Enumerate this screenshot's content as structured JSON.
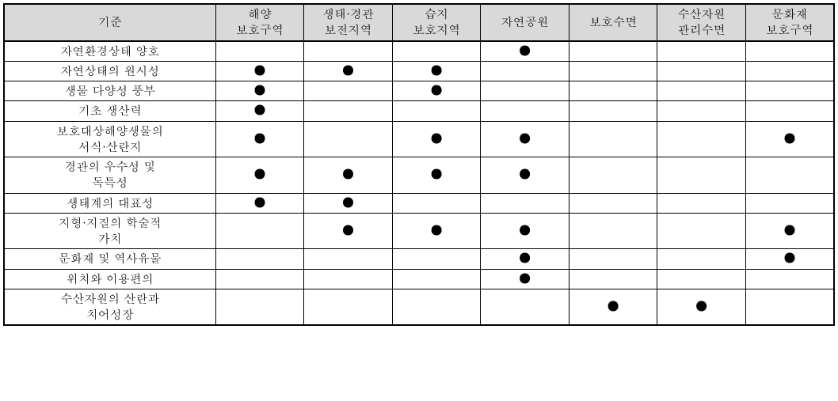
{
  "table": {
    "headers": {
      "criteria": "기준",
      "cols": [
        "해양\n보호구역",
        "생태·경관\n보전지역",
        "습지\n보호지역",
        "자연공원",
        "보호수면",
        "수산자원\n관리수면",
        "문화재\n보호구역"
      ]
    },
    "dot_glyph": "●",
    "rows": [
      {
        "label": "자연환경상태 양호",
        "marks": [
          false,
          false,
          false,
          true,
          false,
          false,
          false
        ]
      },
      {
        "label": "자연상태의 원시성",
        "marks": [
          true,
          true,
          true,
          false,
          false,
          false,
          false
        ]
      },
      {
        "label": "생물 다양성 풍부",
        "marks": [
          true,
          false,
          true,
          false,
          false,
          false,
          false
        ]
      },
      {
        "label": "기초 생산력",
        "marks": [
          true,
          false,
          false,
          false,
          false,
          false,
          false
        ]
      },
      {
        "label": "보호대상해양생물의\n서식·산란지",
        "marks": [
          true,
          false,
          true,
          true,
          false,
          false,
          true
        ]
      },
      {
        "label": "경관의 우수성 및\n독특성",
        "marks": [
          true,
          true,
          true,
          true,
          false,
          false,
          false
        ]
      },
      {
        "label": "생태계의 대표성",
        "marks": [
          true,
          true,
          false,
          false,
          false,
          false,
          false
        ]
      },
      {
        "label": "지형·지질의 학술적\n가치",
        "marks": [
          false,
          true,
          true,
          true,
          false,
          false,
          true
        ]
      },
      {
        "label": "문화재 및 역사유물",
        "marks": [
          false,
          false,
          false,
          true,
          false,
          false,
          true
        ]
      },
      {
        "label": "위치와 이용편의",
        "marks": [
          false,
          false,
          false,
          true,
          false,
          false,
          false
        ]
      },
      {
        "label": "수산자원의 산란과\n치어성장",
        "marks": [
          false,
          false,
          false,
          false,
          true,
          true,
          false
        ]
      }
    ],
    "colors": {
      "header_bg": "#d9d9d9",
      "border": "#000000",
      "background": "#ffffff"
    }
  }
}
